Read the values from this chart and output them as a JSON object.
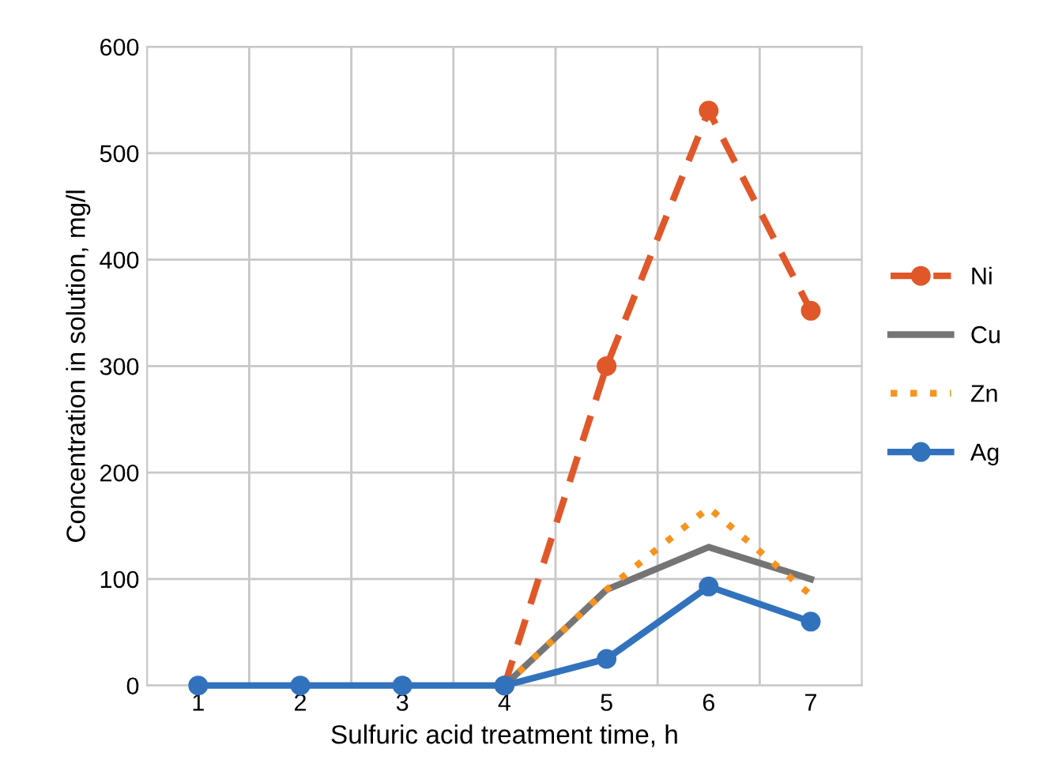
{
  "chart_data": {
    "type": "line",
    "xlabel": "Sulfuric acid treatment time, h",
    "ylabel": "Concentration in solution, mg/l",
    "categories": [
      "1",
      "2",
      "3",
      "4",
      "5",
      "6",
      "7"
    ],
    "series": [
      {
        "name": "Ni",
        "color": "#e0582a",
        "values": [
          null,
          null,
          null,
          0,
          300,
          540,
          352
        ],
        "marker": "circle",
        "line_style": "dashed"
      },
      {
        "name": "Cu",
        "color": "#757575",
        "values": [
          null,
          null,
          null,
          0,
          90,
          130,
          100
        ],
        "marker": "none",
        "line_style": "solid"
      },
      {
        "name": "Zn",
        "color": "#f7931e",
        "values": [
          null,
          null,
          null,
          0,
          90,
          167,
          85
        ],
        "marker": "none",
        "line_style": "dotted"
      },
      {
        "name": "Ag",
        "color": "#3272bd",
        "values": [
          0,
          0,
          0,
          0,
          25,
          93,
          60
        ],
        "marker": "circle",
        "line_style": "solid"
      }
    ],
    "ylim": [
      0,
      600
    ],
    "yticks": [
      0,
      100,
      200,
      300,
      400,
      500,
      600
    ],
    "grid": true,
    "legend": "right"
  }
}
